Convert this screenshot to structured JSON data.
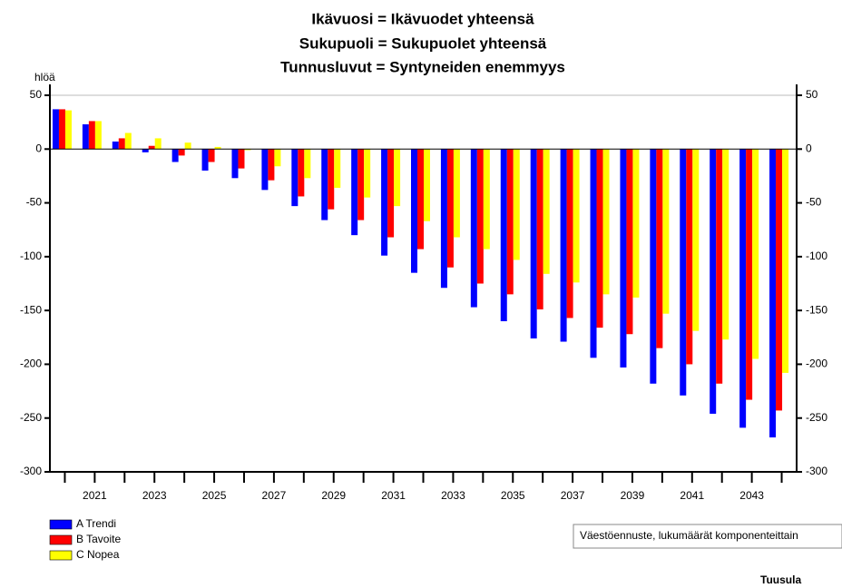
{
  "chart_data": {
    "type": "bar",
    "title": [
      "Ikävuosi = Ikävuodet yhteensä",
      "Sukupuoli = Sukupuolet yhteensä",
      "Tunnusluvut = Syntyneiden enemmyys"
    ],
    "y_label": "hlöä",
    "categories": [
      null,
      "2021",
      null,
      "2023",
      null,
      "2025",
      null,
      "2027",
      null,
      "2029",
      null,
      "2031",
      null,
      "2033",
      null,
      "2035",
      null,
      "2037",
      null,
      "2039",
      null,
      "2041",
      null,
      "2043",
      null
    ],
    "series": [
      {
        "name": "A Trendi",
        "color": "#0000ff",
        "values": [
          37,
          23,
          7,
          -3,
          -12,
          -20,
          -27,
          -38,
          -53,
          -66,
          -80,
          -99,
          -115,
          -129,
          -147,
          -160,
          -176,
          -179,
          -194,
          -203,
          -218,
          -229,
          -246,
          -259,
          -268
        ]
      },
      {
        "name": "B Tavoite",
        "color": "#ff0000",
        "values": [
          37,
          26,
          10,
          3,
          -6,
          -12,
          -18,
          -29,
          -44,
          -56,
          -66,
          -82,
          -93,
          -110,
          -125,
          -135,
          -149,
          -157,
          -166,
          -172,
          -185,
          -200,
          -218,
          -233,
          -243
        ]
      },
      {
        "name": "C Nopea",
        "color": "#ffff00",
        "values": [
          36,
          26,
          15,
          10,
          6,
          2,
          -1,
          -16,
          -27,
          -36,
          -45,
          -53,
          -67,
          -82,
          -93,
          -103,
          -116,
          -124,
          -135,
          -138,
          -153,
          -169,
          -177,
          -195,
          -208
        ]
      }
    ],
    "ylim": [
      -300,
      50
    ],
    "yticks": [
      -300,
      -250,
      -200,
      -150,
      -100,
      -50,
      0,
      50
    ],
    "source": "Väestöennuste, lukumäärät komponenteittain",
    "region": "Tuusula",
    "legend": "bottom-left"
  }
}
